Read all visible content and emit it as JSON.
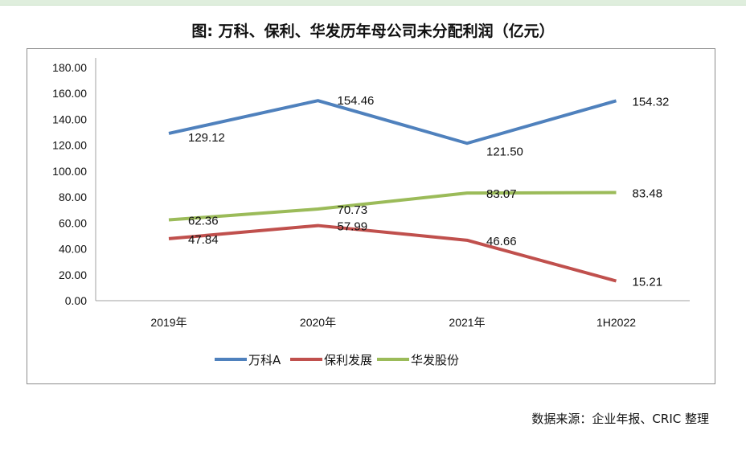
{
  "chart_data": {
    "type": "line",
    "title": "图: 万科、保利、华发历年母公司未分配利润（亿元）",
    "categories": [
      "2019年",
      "2020年",
      "2021年",
      "1H2022"
    ],
    "ylim": [
      0,
      180
    ],
    "yticks": [
      "0.00",
      "20.00",
      "40.00",
      "60.00",
      "80.00",
      "100.00",
      "120.00",
      "140.00",
      "160.00",
      "180.00"
    ],
    "grid": false,
    "legend_position": "bottom",
    "series": [
      {
        "name": "万科A",
        "color": "#4f81bd",
        "values": [
          129.12,
          154.46,
          121.5,
          154.32
        ],
        "labels": [
          "129.12",
          "154.46",
          "121.50",
          "154.32"
        ]
      },
      {
        "name": "保利发展",
        "color": "#c0504d",
        "values": [
          47.84,
          57.99,
          46.66,
          15.21
        ],
        "labels": [
          "47.84",
          "57.99",
          "46.66",
          "15.21"
        ]
      },
      {
        "name": "华发股份",
        "color": "#9bbb59",
        "values": [
          62.36,
          70.73,
          83.07,
          83.48
        ],
        "labels": [
          "62.36",
          "70.73",
          "83.07",
          "83.48"
        ]
      }
    ]
  },
  "source": "数据来源：企业年报、CRIC 整理"
}
